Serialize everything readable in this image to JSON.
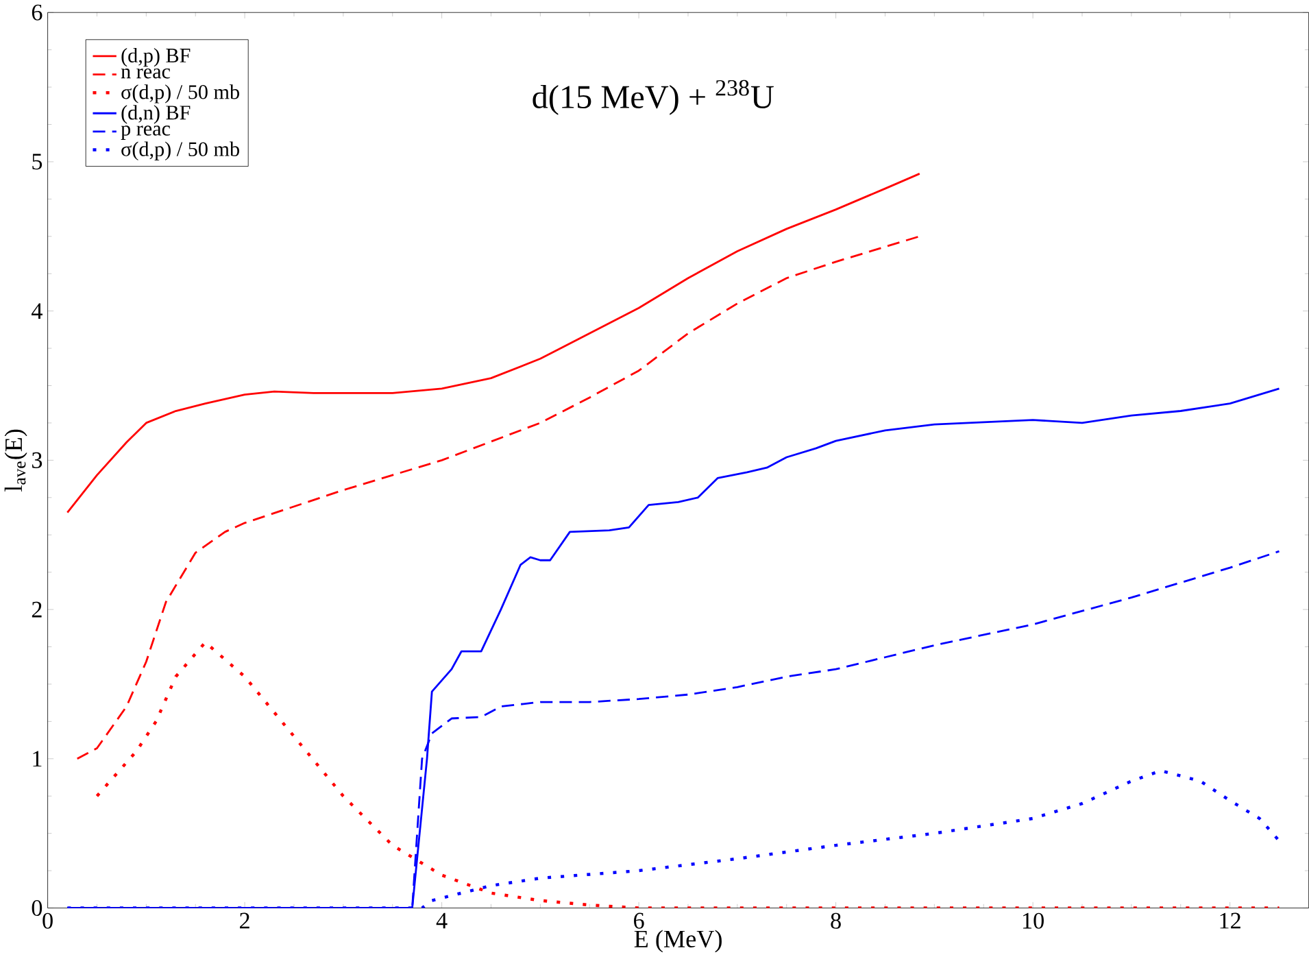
{
  "chart_data": {
    "type": "line",
    "xlabel": "E (MeV)",
    "ylabel": "l$_{ave}$(E)",
    "annotations": [
      "d(15 MeV) + $^{238}$U"
    ],
    "xlim": [
      0,
      12.8
    ],
    "xticks": [
      0,
      2,
      4,
      6,
      8,
      10,
      12
    ],
    "ylim": [
      0,
      6
    ],
    "yticks": [
      0,
      1,
      2,
      3,
      4,
      5,
      6
    ],
    "grid": false,
    "legend": "top left",
    "marker": "none",
    "series": [
      {
        "name": "(d,p) BF",
        "color": "#ff0000",
        "line_style": "solid",
        "x": [
          0.2,
          0.5,
          0.8,
          1.0,
          1.3,
          1.6,
          2.0,
          2.3,
          2.7,
          3.0,
          3.5,
          4.0,
          4.5,
          5.0,
          5.5,
          6.0,
          6.5,
          7.0,
          7.5,
          8.0,
          8.5,
          8.85
        ],
        "values": [
          2.65,
          2.9,
          3.12,
          3.25,
          3.33,
          3.38,
          3.44,
          3.46,
          3.45,
          3.45,
          3.45,
          3.48,
          3.55,
          3.68,
          3.85,
          4.02,
          4.22,
          4.4,
          4.55,
          4.68,
          4.82,
          4.92
        ]
      },
      {
        "name": "n reac",
        "color": "#ff0000",
        "line_style": "dashed",
        "x": [
          0.3,
          0.5,
          0.8,
          1.0,
          1.2,
          1.5,
          1.8,
          2.0,
          3.0,
          4.0,
          5.0,
          5.5,
          6.0,
          6.5,
          7.0,
          7.5,
          8.0,
          8.5,
          8.85
        ],
        "values": [
          1.0,
          1.07,
          1.35,
          1.65,
          2.05,
          2.38,
          2.52,
          2.58,
          2.8,
          3.0,
          3.25,
          3.42,
          3.6,
          3.85,
          4.05,
          4.22,
          4.33,
          4.43,
          4.5
        ]
      },
      {
        "name": "σ(d,p) / 50 mb",
        "color": "#ff0000",
        "line_style": "dotted",
        "x": [
          0.5,
          0.7,
          0.9,
          1.1,
          1.3,
          1.6,
          2.0,
          2.5,
          3.0,
          3.5,
          4.0,
          4.5,
          5.0,
          5.5,
          6.0,
          8.85,
          12.5
        ],
        "values": [
          0.75,
          0.9,
          1.05,
          1.25,
          1.55,
          1.78,
          1.55,
          1.15,
          0.75,
          0.42,
          0.22,
          0.1,
          0.05,
          0.02,
          0,
          0,
          0
        ]
      },
      {
        "name": "(d,n) BF",
        "color": "#0000ff",
        "line_style": "solid",
        "x": [
          0.2,
          3.7,
          3.85,
          3.9,
          4.1,
          4.2,
          4.4,
          4.6,
          4.8,
          4.9,
          5.0,
          5.1,
          5.3,
          5.7,
          5.9,
          6.1,
          6.4,
          6.6,
          6.8,
          7.1,
          7.3,
          7.5,
          7.8,
          8.0,
          8.5,
          9.0,
          10.0,
          10.5,
          11.0,
          11.5,
          12.0,
          12.5
        ],
        "values": [
          0,
          0,
          1.0,
          1.45,
          1.6,
          1.72,
          1.72,
          2.0,
          2.3,
          2.35,
          2.33,
          2.33,
          2.52,
          2.53,
          2.55,
          2.7,
          2.72,
          2.75,
          2.88,
          2.92,
          2.95,
          3.02,
          3.08,
          3.13,
          3.2,
          3.24,
          3.27,
          3.25,
          3.3,
          3.33,
          3.38,
          3.48
        ]
      },
      {
        "name": "p reac",
        "color": "#0000ff",
        "line_style": "dashed",
        "x": [
          0.2,
          3.7,
          3.8,
          3.9,
          4.1,
          4.4,
          4.6,
          5.0,
          5.5,
          6.0,
          6.5,
          7.0,
          7.5,
          8.0,
          8.5,
          9.0,
          10.0,
          11.0,
          12.0,
          12.5
        ],
        "values": [
          0,
          0,
          1.0,
          1.17,
          1.27,
          1.28,
          1.35,
          1.38,
          1.38,
          1.4,
          1.43,
          1.48,
          1.55,
          1.6,
          1.68,
          1.76,
          1.9,
          2.08,
          2.28,
          2.39
        ]
      },
      {
        "name": "σ(d,p) / 50 mb",
        "color": "#0000ff",
        "line_style": "dotted",
        "x": [
          0.2,
          3.8,
          3.9,
          4.2,
          4.5,
          5.0,
          6.0,
          7.0,
          8.0,
          9.0,
          10.0,
          10.5,
          11.0,
          11.3,
          11.7,
          12.0,
          12.3,
          12.5
        ],
        "values": [
          0,
          0,
          0.05,
          0.1,
          0.15,
          0.2,
          0.25,
          0.33,
          0.42,
          0.5,
          0.6,
          0.7,
          0.85,
          0.92,
          0.85,
          0.72,
          0.6,
          0.45
        ]
      }
    ]
  }
}
